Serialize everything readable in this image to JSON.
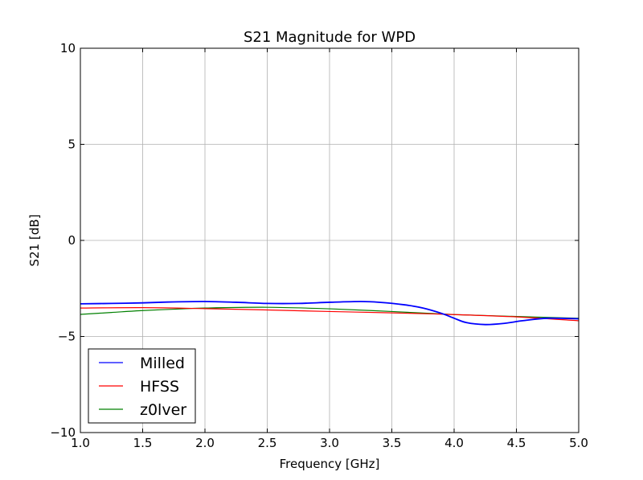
{
  "chart_data": {
    "type": "line",
    "title": "S21 Magnitude for WPD",
    "xlabel": "Frequency [GHz]",
    "ylabel": "S21 [dB]",
    "xlim": [
      1.0,
      5.0
    ],
    "ylim": [
      -10,
      10
    ],
    "xticks": [
      1.0,
      1.5,
      2.0,
      2.5,
      3.0,
      3.5,
      4.0,
      4.5,
      5.0
    ],
    "xtick_labels": [
      "1.0",
      "1.5",
      "2.0",
      "2.5",
      "3.0",
      "3.5",
      "4.0",
      "4.5",
      "5.0"
    ],
    "yticks": [
      -10,
      -5,
      0,
      5,
      10
    ],
    "ytick_labels": [
      "−10",
      "−5",
      "0",
      "5",
      "10"
    ],
    "grid": true,
    "legend_position": "lower-left",
    "series": [
      {
        "name": "Milled",
        "color": "#0000ff",
        "x": [
          1.0,
          1.25,
          1.5,
          1.75,
          2.0,
          2.25,
          2.5,
          2.75,
          3.0,
          3.25,
          3.4,
          3.6,
          3.75,
          3.9,
          4.0,
          4.1,
          4.25,
          4.4,
          4.55,
          4.75,
          5.0
        ],
        "y": [
          -3.3,
          -3.28,
          -3.25,
          -3.2,
          -3.18,
          -3.22,
          -3.28,
          -3.28,
          -3.22,
          -3.18,
          -3.22,
          -3.35,
          -3.52,
          -3.8,
          -4.05,
          -4.28,
          -4.38,
          -4.32,
          -4.18,
          -4.05,
          -4.08
        ]
      },
      {
        "name": "HFSS",
        "color": "#ff0000",
        "x": [
          1.0,
          1.5,
          2.0,
          2.5,
          3.0,
          3.5,
          4.0,
          4.5,
          5.0
        ],
        "y": [
          -3.52,
          -3.5,
          -3.55,
          -3.62,
          -3.7,
          -3.77,
          -3.86,
          -3.98,
          -4.18
        ]
      },
      {
        "name": "z0lver",
        "color": "#008000",
        "x": [
          1.0,
          1.25,
          1.5,
          1.75,
          2.0,
          2.5,
          3.0,
          3.5,
          4.0,
          4.5,
          5.0
        ],
        "y": [
          -3.85,
          -3.75,
          -3.65,
          -3.58,
          -3.52,
          -3.48,
          -3.56,
          -3.7,
          -3.86,
          -3.96,
          -4.05
        ]
      }
    ]
  }
}
